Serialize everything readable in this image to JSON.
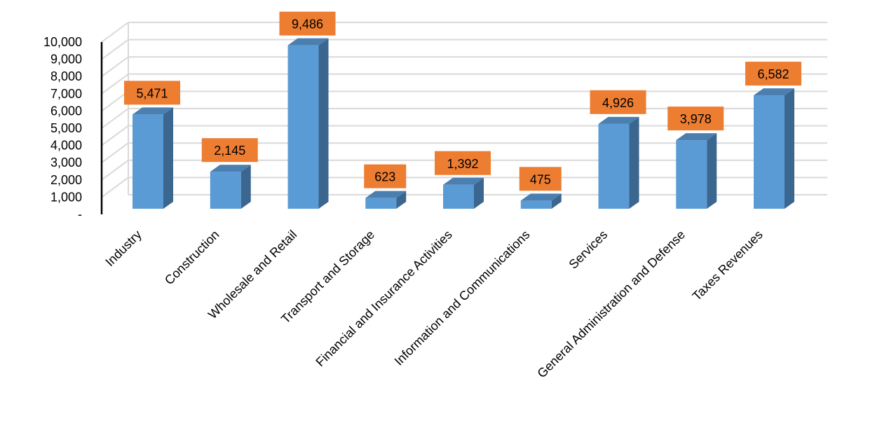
{
  "chart_data": {
    "type": "bar",
    "categories": [
      "Industry",
      "Construction",
      "Wholesale and Retail",
      "Transport and Storage",
      "Financial and Insurance Activities",
      "Information and Communications",
      "Services",
      "General Administration and Defense",
      "Taxes Revenues"
    ],
    "values": [
      5471,
      2145,
      9486,
      623,
      1392,
      475,
      4926,
      3978,
      6582
    ],
    "data_labels": [
      "5,471",
      "2,145",
      "9,486",
      "623",
      "1,392",
      "475",
      "4,926",
      "3,978",
      "6,582"
    ],
    "y_ticks": [
      {
        "value": 0,
        "label": "-"
      },
      {
        "value": 1000,
        "label": "1,000"
      },
      {
        "value": 2000,
        "label": "2,000"
      },
      {
        "value": 3000,
        "label": "3,000"
      },
      {
        "value": 4000,
        "label": "4,000"
      },
      {
        "value": 5000,
        "label": "5,000"
      },
      {
        "value": 6000,
        "label": "6,000"
      },
      {
        "value": 7000,
        "label": "7,000"
      },
      {
        "value": 8000,
        "label": "8,000"
      },
      {
        "value": 9000,
        "label": "9,000"
      },
      {
        "value": 10000,
        "label": "10,000"
      }
    ],
    "ylim": [
      0,
      10000
    ],
    "grid": true,
    "legend": "none",
    "style": "3d-column",
    "colors": {
      "bar_front": "#5B9BD5",
      "bar_side": "#3A6690",
      "bar_top": "#4A7FB0",
      "label_box": "#ED7D31",
      "grid": "#D9D9D9"
    }
  }
}
